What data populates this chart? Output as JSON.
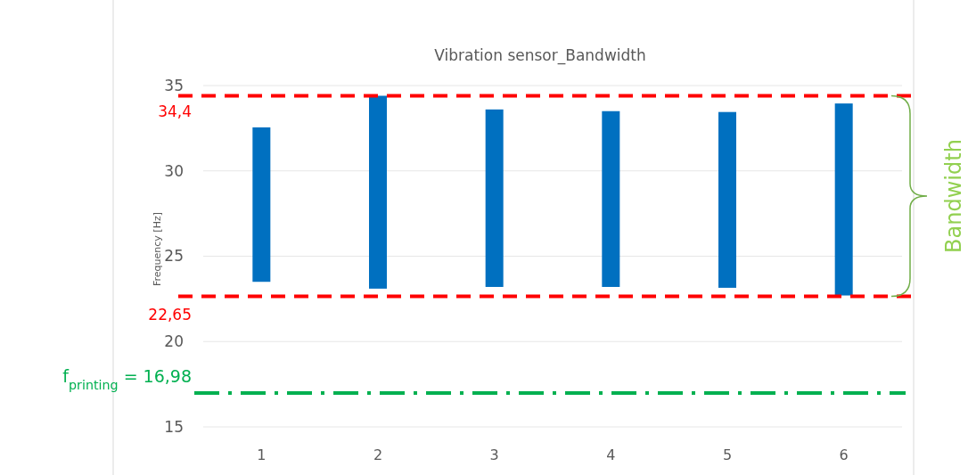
{
  "chart_data": {
    "type": "bar",
    "title": "Vibration sensor_Bandwidth",
    "ylabel": "Frequency [Hz]",
    "categories": [
      "1",
      "2",
      "3",
      "4",
      "5",
      "6"
    ],
    "base": [
      23.5,
      23.1,
      23.2,
      23.2,
      23.15,
      22.7
    ],
    "values": [
      9.05,
      11.3,
      10.4,
      10.3,
      10.3,
      11.25
    ],
    "color": "#0070c0",
    "ylim": [
      15,
      35
    ],
    "yticks": [
      15,
      20,
      25,
      30,
      35
    ],
    "grid": "y",
    "ref_lines": [
      {
        "axis": "y",
        "value": 34.4,
        "label": "34,4",
        "color": "#ff0000",
        "line_style": "dashed"
      },
      {
        "axis": "y",
        "value": 22.65,
        "label": "22,65",
        "color": "#ff0000",
        "line_style": "dashed"
      },
      {
        "axis": "y",
        "value": 16.98,
        "label": "f$_{printing}$ = 16,98",
        "color": "#00b050",
        "line_style": "dashdot"
      }
    ],
    "annotations": [
      "Bandwidth"
    ]
  }
}
